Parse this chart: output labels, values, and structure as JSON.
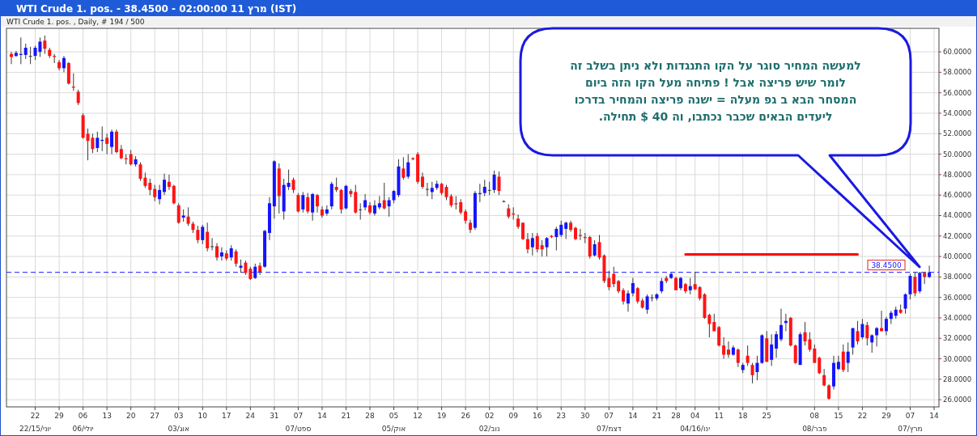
{
  "chart_data": {
    "type": "candlestick",
    "title": "WTI Crude 1. pos. - 38.4500 - 02:00:00 11 מרץ (IST)",
    "subtitle": "WTI Crude 1. pos. , Daily, # 194 / 500",
    "categories": [
      null,
      null,
      null,
      null,
      null,
      "22\n22/15/יוני",
      null,
      null,
      null,
      null,
      "29",
      null,
      null,
      null,
      null,
      "06\n06/יולי",
      null,
      null,
      null,
      null,
      "13",
      null,
      null,
      null,
      null,
      "20",
      null,
      null,
      null,
      null,
      "27",
      null,
      null,
      null,
      null,
      "03\n03/אוג",
      null,
      null,
      null,
      null,
      "10",
      null,
      null,
      null,
      null,
      "17",
      null,
      null,
      null,
      null,
      "24",
      null,
      null,
      null,
      null,
      "31",
      null,
      null,
      null,
      null,
      "07\n07/ספט",
      null,
      null,
      null,
      null,
      "14",
      null,
      null,
      null,
      null,
      "21",
      null,
      null,
      null,
      null,
      "28",
      null,
      null,
      null,
      null,
      "05\n05/אוק",
      null,
      null,
      null,
      null,
      "12",
      null,
      null,
      null,
      null,
      "19",
      null,
      null,
      null,
      null,
      "26",
      null,
      null,
      null,
      null,
      "02\n02/נוב",
      null,
      null,
      null,
      null,
      "09",
      null,
      null,
      null,
      null,
      "16",
      null,
      null,
      null,
      null,
      "23",
      null,
      null,
      null,
      null,
      "30",
      null,
      null,
      null,
      null,
      "07\n07/דצמ",
      null,
      null,
      null,
      null,
      "14",
      null,
      null,
      null,
      null,
      "21",
      null,
      null,
      null,
      "28",
      null,
      null,
      null,
      "04\n04/16/ינו",
      null,
      null,
      null,
      null,
      "11",
      null,
      null,
      null,
      null,
      "18",
      null,
      null,
      null,
      null,
      "25",
      null,
      null,
      null,
      null,
      null,
      null,
      null,
      null,
      null,
      "08\n08/פבר",
      null,
      null,
      null,
      null,
      "15",
      null,
      null,
      null,
      null,
      "22",
      null,
      null,
      null,
      null,
      "29",
      null,
      null,
      null,
      null,
      "07\n07/מרץ",
      null,
      null,
      null,
      null,
      "14"
    ],
    "ylim": [
      25.3,
      62.3
    ],
    "yticks": [
      {
        "value": 26,
        "label": "26.0000"
      },
      {
        "value": 28,
        "label": "28.0000"
      },
      {
        "value": 30,
        "label": "30.0000"
      },
      {
        "value": 32,
        "label": "32.0000"
      },
      {
        "value": 34,
        "label": "34.0000"
      },
      {
        "value": 36,
        "label": "36.0000"
      },
      {
        "value": 38,
        "label": "38.0000"
      },
      {
        "value": 40,
        "label": "40.0000"
      },
      {
        "value": 42,
        "label": "42.0000"
      },
      {
        "value": 44,
        "label": "44.0000"
      },
      {
        "value": 46,
        "label": "46.0000"
      },
      {
        "value": 48,
        "label": "48.0000"
      },
      {
        "value": 50,
        "label": "50.0000"
      },
      {
        "value": 52,
        "label": "52.0000"
      },
      {
        "value": 54,
        "label": "54.0000"
      },
      {
        "value": 56,
        "label": "56.0000"
      },
      {
        "value": 58,
        "label": "58.0000"
      },
      {
        "value": 60,
        "label": "60.0000"
      }
    ],
    "grid": true,
    "colors": [
      "#ff1414",
      "#1414ff",
      "#1414ff",
      "#1414ff",
      "#3a3a3a",
      "#1414ff",
      "#1414ff",
      "#ff1414",
      "#ff1414",
      "#ff1414",
      "#ff1414",
      "#1414ff",
      "#ff1414",
      "#ff1414",
      "#ff1414",
      "#ff1414",
      "#ff1414",
      "#ff1414",
      "#1414ff",
      "#1414ff",
      "#ff1414",
      "#1414ff",
      "#ff1414",
      "#ff1414",
      "#ff1414",
      "#ff1414",
      "#1414ff",
      "#ff1414",
      "#ff1414",
      "#ff1414",
      "#ff1414",
      "#1414ff",
      "#1414ff",
      "#ff1414",
      "#ff1414",
      "#ff1414",
      "#1414ff",
      "#ff1414",
      "#ff1414",
      "#ff1414",
      "#1414ff",
      "#ff1414",
      "#3a3a3a",
      "#ff1414",
      "#1414ff",
      "#ff1414",
      "#1414ff",
      "#ff1414",
      "#1414ff",
      "#ff1414",
      "#ff1414",
      "#1414ff",
      "#ff1414",
      "#1414ff",
      "#1414ff",
      "#1414ff",
      "#ff1414",
      "#1414ff",
      "#1414ff",
      "#ff1414",
      "#ff1414",
      "#1414ff",
      "#ff1414",
      "#1414ff",
      "#ff1414",
      "#ff1414",
      "#1414ff",
      "#1414ff",
      "#ff1414",
      "#ff1414",
      "#1414ff",
      "#ff1414",
      "#ff1414",
      "#3a3a3a",
      "#1414ff",
      "#ff1414",
      "#1414ff",
      "#1414ff",
      "#ff1414",
      "#1414ff",
      "#1414ff",
      "#1414ff",
      "#ff1414",
      "#1414ff",
      "#ff1414",
      "#ff1414",
      "#ff1414",
      "#3a3a3a",
      "#1414ff",
      "#1414ff",
      "#ff1414",
      "#ff1414",
      "#ff1414",
      "#ff1414",
      "#ff1414",
      "#ff1414",
      "#ff1414",
      "#1414ff",
      "#1414ff",
      "#1414ff",
      "#3a3a3a",
      "#1414ff",
      "#ff1414",
      "#3a3a3a",
      "#ff1414",
      "#ff1414",
      "#ff1414",
      "#ff1414",
      "#ff1414",
      "#1414ff",
      "#ff1414",
      "#ff1414",
      "#1414ff",
      "#ff1414",
      "#1414ff",
      "#1414ff",
      "#1414ff",
      "#ff1414",
      "#ff1414",
      "#ff1414",
      "#ff1414",
      "#ff1414",
      "#1414ff",
      "#ff1414",
      "#ff1414",
      "#ff1414",
      "#ff1414",
      "#ff1414",
      "#ff1414",
      "#1414ff",
      "#1414ff",
      "#ff1414",
      "#ff1414",
      "#1414ff",
      "#3a3a3a",
      "#1414ff",
      "#1414ff",
      "#ff1414",
      "#1414ff",
      "#ff1414",
      "#1414ff",
      "#ff1414",
      "#1414ff",
      "#ff1414",
      "#ff1414",
      "#ff1414",
      "#ff1414",
      "#ff1414",
      "#ff1414",
      "#ff1414",
      "#ff1414",
      "#1414ff",
      "#ff1414",
      "#1414ff",
      "#ff1414",
      "#ff1414",
      "#1414ff",
      "#1414ff",
      "#ff1414",
      "#1414ff",
      "#1414ff",
      "#1414ff",
      "#1414ff",
      "#ff1414",
      "#ff1414",
      "#1414ff",
      "#ff1414",
      "#ff1414",
      "#ff1414",
      "#ff1414",
      "#ff1414",
      "#ff1414",
      "#1414ff",
      "#1414ff",
      "#ff1414",
      "#1414ff",
      "#1414ff",
      "#ff1414",
      "#1414ff",
      "#ff1414",
      "#1414ff",
      "#1414ff",
      "#ff1414",
      "#1414ff",
      "#1414ff",
      "#1414ff",
      "#ff1414",
      "#1414ff",
      "#1414ff",
      "#ff1414",
      "#1414ff",
      "#ff1414",
      "#1414ff",
      null
    ],
    "ohlc": [
      [
        59.8,
        60.0,
        58.8,
        59.5
      ],
      [
        59.6,
        60.1,
        59.5,
        59.9
      ],
      [
        59.7,
        61.4,
        58.8,
        59.8
      ],
      [
        59.7,
        60.8,
        59.3,
        60.4
      ],
      [
        59.6,
        60.5,
        58.8,
        59.6
      ],
      [
        59.6,
        60.6,
        59.2,
        60.4
      ],
      [
        60.0,
        61.4,
        59.5,
        61.0
      ],
      [
        61.1,
        61.6,
        59.8,
        60.3
      ],
      [
        60.2,
        60.4,
        59.4,
        59.6
      ],
      [
        59.6,
        59.8,
        58.9,
        59.5
      ],
      [
        59.0,
        59.2,
        58.2,
        58.4
      ],
      [
        58.4,
        59.6,
        58.0,
        59.4
      ],
      [
        58.9,
        59.0,
        56.8,
        56.9
      ],
      [
        56.6,
        57.9,
        56.2,
        56.5
      ],
      [
        56.1,
        56.3,
        54.8,
        55.0
      ],
      [
        53.8,
        54.0,
        51.5,
        51.6
      ],
      [
        52.0,
        52.5,
        49.4,
        51.3
      ],
      [
        51.6,
        52.0,
        50.1,
        50.5
      ],
      [
        50.6,
        52.2,
        50.2,
        51.6
      ],
      [
        51.3,
        52.7,
        50.3,
        51.4
      ],
      [
        51.6,
        52.0,
        50.0,
        51.0
      ],
      [
        50.7,
        52.4,
        50.0,
        52.2
      ],
      [
        52.2,
        52.4,
        50.1,
        50.2
      ],
      [
        50.5,
        50.9,
        49.5,
        49.6
      ],
      [
        49.6,
        50.0,
        49.0,
        49.5
      ],
      [
        50.0,
        50.4,
        48.9,
        49.0
      ],
      [
        49.0,
        49.8,
        48.8,
        49.5
      ],
      [
        49.0,
        49.2,
        47.4,
        47.6
      ],
      [
        47.7,
        48.2,
        46.7,
        46.9
      ],
      [
        47.2,
        47.6,
        46.0,
        46.5
      ],
      [
        46.6,
        47.0,
        45.4,
        45.8
      ],
      [
        45.6,
        47.0,
        45.1,
        46.5
      ],
      [
        46.3,
        48.1,
        46.0,
        47.5
      ],
      [
        47.3,
        48.0,
        46.5,
        46.8
      ],
      [
        46.9,
        47.0,
        45.1,
        45.2
      ],
      [
        45.0,
        45.2,
        43.2,
        43.3
      ],
      [
        43.8,
        44.6,
        43.4,
        44.0
      ],
      [
        43.9,
        44.8,
        43.0,
        43.2
      ],
      [
        43.2,
        43.4,
        42.3,
        42.6
      ],
      [
        42.6,
        43.0,
        41.3,
        41.6
      ],
      [
        41.6,
        43.1,
        41.2,
        42.9
      ],
      [
        42.4,
        43.3,
        40.5,
        40.8
      ],
      [
        41.0,
        41.8,
        40.6,
        41.0
      ],
      [
        41.0,
        41.3,
        39.6,
        39.9
      ],
      [
        40.0,
        40.9,
        39.6,
        40.4
      ],
      [
        40.3,
        40.6,
        39.6,
        39.8
      ],
      [
        39.9,
        41.1,
        39.6,
        40.8
      ],
      [
        40.5,
        40.7,
        39.0,
        39.3
      ],
      [
        38.9,
        39.7,
        38.4,
        39.1
      ],
      [
        39.4,
        39.6,
        38.2,
        38.4
      ],
      [
        38.8,
        39.0,
        37.7,
        37.8
      ],
      [
        37.9,
        39.3,
        37.8,
        39.0
      ],
      [
        39.1,
        39.4,
        38.2,
        38.5
      ],
      [
        39.0,
        42.6,
        38.9,
        42.5
      ],
      [
        42.3,
        45.8,
        41.6,
        45.2
      ],
      [
        44.9,
        49.4,
        43.7,
        49.3
      ],
      [
        48.6,
        49.1,
        44.2,
        45.9
      ],
      [
        44.4,
        47.6,
        43.6,
        47.0
      ],
      [
        46.8,
        48.5,
        46.5,
        47.2
      ],
      [
        47.5,
        47.7,
        46.2,
        46.5
      ],
      [
        46.0,
        46.2,
        44.3,
        44.4
      ],
      [
        44.6,
        46.3,
        44.3,
        46.0
      ],
      [
        45.8,
        46.2,
        44.2,
        44.4
      ],
      [
        44.3,
        46.2,
        43.5,
        46.1
      ],
      [
        46.0,
        46.1,
        44.3,
        44.9
      ],
      [
        44.6,
        44.9,
        43.8,
        44.0
      ],
      [
        44.2,
        45.0,
        44.0,
        44.6
      ],
      [
        44.9,
        47.3,
        44.6,
        47.1
      ],
      [
        46.8,
        47.7,
        46.3,
        46.5
      ],
      [
        46.5,
        46.6,
        44.2,
        44.6
      ],
      [
        44.7,
        47.0,
        44.6,
        46.9
      ],
      [
        46.4,
        46.6,
        45.8,
        46.1
      ],
      [
        46.3,
        47.0,
        44.2,
        44.3
      ],
      [
        44.6,
        45.2,
        43.6,
        44.6
      ],
      [
        44.8,
        46.1,
        44.5,
        45.5
      ],
      [
        45.0,
        45.3,
        44.1,
        44.3
      ],
      [
        44.2,
        45.5,
        44.0,
        45.0
      ],
      [
        44.8,
        45.9,
        44.6,
        45.2
      ],
      [
        45.5,
        47.2,
        44.6,
        44.7
      ],
      [
        44.9,
        45.8,
        43.9,
        45.5
      ],
      [
        45.5,
        46.5,
        45.2,
        46.4
      ],
      [
        46.0,
        49.5,
        45.8,
        48.8
      ],
      [
        48.6,
        49.7,
        47.5,
        47.7
      ],
      [
        47.8,
        50.0,
        47.6,
        49.2
      ],
      [
        49.6,
        49.7,
        49.4,
        49.5
      ],
      [
        50.0,
        50.2,
        47.1,
        47.3
      ],
      [
        47.8,
        48.2,
        46.6,
        46.8
      ],
      [
        46.6,
        47.2,
        45.9,
        46.6
      ],
      [
        46.3,
        47.3,
        45.6,
        46.7
      ],
      [
        46.7,
        47.4,
        46.5,
        47.1
      ],
      [
        47.1,
        47.2,
        46.0,
        46.2
      ],
      [
        46.8,
        47.0,
        45.5,
        45.8
      ],
      [
        45.9,
        46.1,
        44.8,
        45.0
      ],
      [
        45.2,
        45.9,
        44.6,
        45.1
      ],
      [
        45.3,
        45.6,
        44.1,
        44.3
      ],
      [
        44.4,
        44.6,
        43.2,
        43.5
      ],
      [
        43.3,
        43.6,
        42.3,
        42.6
      ],
      [
        42.8,
        46.4,
        42.6,
        46.2
      ],
      [
        46.1,
        47.1,
        45.3,
        46.2
      ],
      [
        46.2,
        47.5,
        45.9,
        46.8
      ],
      [
        46.5,
        47.3,
        46.0,
        46.5
      ],
      [
        46.5,
        48.4,
        46.2,
        48.0
      ],
      [
        47.8,
        48.3,
        46.0,
        46.4
      ],
      [
        45.4,
        45.5,
        45.3,
        45.4
      ],
      [
        44.7,
        45.1,
        43.7,
        43.9
      ],
      [
        44.2,
        44.8,
        43.6,
        44.1
      ],
      [
        43.7,
        44.1,
        42.7,
        42.9
      ],
      [
        43.3,
        43.3,
        41.6,
        41.7
      ],
      [
        41.7,
        42.3,
        40.3,
        40.7
      ],
      [
        40.9,
        42.3,
        40.1,
        41.8
      ],
      [
        42.0,
        42.3,
        40.4,
        40.7
      ],
      [
        41.1,
        41.6,
        40.0,
        40.7
      ],
      [
        40.9,
        41.9,
        40.0,
        41.8
      ],
      [
        42.0,
        42.1,
        41.8,
        41.9
      ],
      [
        41.9,
        42.9,
        40.6,
        42.7
      ],
      [
        42.1,
        43.5,
        41.9,
        43.1
      ],
      [
        42.7,
        43.4,
        41.7,
        43.3
      ],
      [
        43.3,
        43.5,
        42.4,
        42.6
      ],
      [
        42.8,
        42.9,
        41.6,
        41.7
      ],
      [
        42.1,
        42.7,
        41.6,
        42.0
      ],
      [
        41.9,
        42.3,
        41.3,
        41.8
      ],
      [
        41.9,
        42.0,
        39.8,
        40.0
      ],
      [
        40.1,
        41.6,
        40.0,
        41.2
      ],
      [
        41.4,
        42.1,
        39.7,
        39.9
      ],
      [
        40.1,
        40.2,
        37.4,
        37.6
      ],
      [
        37.9,
        38.6,
        36.7,
        37.0
      ],
      [
        38.3,
        39.0,
        37.0,
        37.3
      ],
      [
        37.6,
        37.7,
        36.4,
        36.6
      ],
      [
        36.7,
        36.9,
        35.3,
        35.6
      ],
      [
        35.4,
        36.7,
        34.6,
        36.4
      ],
      [
        36.4,
        37.9,
        36.1,
        37.4
      ],
      [
        36.9,
        37.0,
        35.4,
        35.6
      ],
      [
        35.7,
        35.9,
        34.9,
        35.0
      ],
      [
        34.8,
        36.3,
        34.4,
        36.1
      ],
      [
        36.0,
        36.3,
        35.6,
        36.0
      ],
      [
        35.9,
        36.4,
        35.7,
        36.3
      ],
      [
        36.6,
        37.9,
        36.4,
        37.6
      ],
      [
        37.9,
        38.1,
        37.4,
        37.6
      ],
      [
        37.9,
        38.4,
        37.8,
        38.3
      ],
      [
        37.9,
        38.0,
        36.7,
        36.7
      ],
      [
        36.9,
        38.0,
        36.7,
        37.9
      ],
      [
        37.3,
        37.4,
        36.4,
        36.6
      ],
      [
        36.7,
        37.9,
        36.3,
        37.1
      ],
      [
        37.3,
        38.5,
        36.7,
        36.8
      ],
      [
        37.0,
        37.1,
        35.7,
        35.9
      ],
      [
        36.3,
        36.4,
        33.9,
        34.0
      ],
      [
        34.3,
        34.4,
        32.1,
        33.4
      ],
      [
        33.6,
        34.4,
        32.7,
        32.7
      ],
      [
        33.1,
        33.2,
        31.2,
        31.3
      ],
      [
        31.3,
        32.1,
        30.0,
        30.4
      ],
      [
        30.9,
        31.7,
        30.1,
        30.4
      ],
      [
        30.4,
        31.3,
        30.3,
        31.1
      ],
      [
        30.9,
        31.0,
        29.2,
        29.6
      ],
      [
        28.9,
        29.6,
        28.6,
        29.4
      ],
      [
        30.3,
        31.3,
        29.3,
        29.6
      ],
      [
        29.4,
        29.6,
        27.6,
        28.4
      ],
      [
        28.7,
        30.3,
        27.9,
        29.6
      ],
      [
        29.6,
        32.4,
        29.5,
        32.3
      ],
      [
        32.0,
        32.7,
        29.7,
        29.7
      ],
      [
        29.9,
        32.4,
        29.3,
        31.4
      ],
      [
        31.0,
        32.7,
        30.1,
        32.4
      ],
      [
        31.9,
        34.9,
        31.7,
        33.3
      ],
      [
        33.5,
        34.4,
        32.7,
        33.7
      ],
      [
        34.0,
        34.1,
        31.2,
        31.3
      ],
      [
        31.3,
        31.4,
        29.5,
        29.6
      ],
      [
        29.4,
        32.6,
        29.4,
        32.4
      ],
      [
        32.6,
        33.6,
        31.3,
        31.7
      ],
      [
        31.9,
        32.6,
        30.7,
        30.9
      ],
      [
        31.0,
        31.4,
        29.6,
        29.6
      ],
      [
        30.1,
        30.2,
        28.5,
        28.6
      ],
      [
        28.4,
        29.0,
        27.3,
        27.4
      ],
      [
        27.4,
        27.5,
        26.0,
        26.1
      ],
      [
        27.3,
        30.3,
        27.0,
        29.6
      ],
      [
        29.0,
        30.3,
        28.9,
        29.7
      ],
      [
        30.7,
        31.4,
        28.7,
        28.9
      ],
      [
        29.6,
        31.6,
        28.7,
        30.7
      ],
      [
        31.1,
        33.0,
        30.4,
        33.0
      ],
      [
        32.7,
        33.7,
        31.4,
        31.7
      ],
      [
        32.1,
        33.9,
        31.9,
        33.4
      ],
      [
        33.3,
        33.6,
        31.3,
        32.0
      ],
      [
        31.6,
        32.4,
        30.6,
        32.3
      ],
      [
        32.3,
        33.1,
        31.2,
        33.0
      ],
      [
        33.0,
        34.7,
        32.7,
        32.7
      ],
      [
        32.7,
        34.1,
        32.3,
        33.9
      ],
      [
        33.9,
        34.7,
        33.4,
        34.5
      ],
      [
        34.2,
        35.1,
        33.9,
        34.8
      ],
      [
        34.8,
        35.3,
        34.4,
        34.5
      ],
      [
        34.9,
        36.4,
        34.4,
        36.3
      ],
      [
        36.3,
        38.3,
        35.8,
        38.1
      ],
      [
        38.0,
        38.5,
        36.1,
        36.4
      ],
      [
        36.6,
        38.5,
        36.4,
        38.4
      ],
      [
        38.4,
        38.5,
        37.3,
        38.0
      ],
      [
        38.0,
        39.1,
        37.9,
        38.45
      ],
      null
    ],
    "series": [
      {
        "type": "line",
        "color": "#ff0000",
        "values": [
          null,
          null,
          null,
          null,
          null,
          null,
          null,
          null,
          null,
          null,
          null,
          null,
          null,
          null,
          null,
          null,
          null,
          null,
          null,
          null,
          null,
          null,
          null,
          null,
          null,
          null,
          null,
          null,
          null,
          null,
          null,
          null,
          null,
          null,
          null,
          null,
          null,
          null,
          null,
          null,
          null,
          null,
          null,
          null,
          null,
          null,
          null,
          null,
          null,
          null,
          null,
          null,
          null,
          null,
          null,
          null,
          null,
          null,
          null,
          null,
          null,
          null,
          null,
          null,
          null,
          null,
          null,
          null,
          null,
          null,
          null,
          null,
          null,
          null,
          null,
          null,
          null,
          null,
          null,
          null,
          null,
          null,
          null,
          null,
          null,
          null,
          null,
          null,
          null,
          null,
          null,
          null,
          null,
          null,
          null,
          null,
          null,
          null,
          null,
          null,
          null,
          null,
          null,
          null,
          null,
          null,
          null,
          null,
          null,
          null,
          null,
          null,
          null,
          null,
          null,
          null,
          null,
          null,
          null,
          null,
          null,
          null,
          null,
          null,
          null,
          null,
          null,
          null,
          null,
          null,
          null,
          null,
          null,
          null,
          null,
          null,
          null,
          null,
          null,
          null,
          null,
          40.2,
          40.2,
          40.2,
          40.2,
          40.2,
          40.2,
          40.2,
          40.2,
          40.2,
          40.2,
          40.2,
          40.2,
          40.2,
          40.2,
          40.2,
          40.2,
          40.2,
          40.2,
          40.2,
          40.2,
          40.2,
          40.2,
          40.2,
          40.2,
          40.2,
          40.2,
          40.2,
          40.2,
          40.2,
          40.2,
          40.2,
          40.2,
          40.2,
          40.2,
          40.2,
          40.2,
          40.2,
          null,
          null,
          null,
          null,
          null,
          null,
          null,
          null,
          null,
          null,
          null,
          null,
          null,
          null,
          null,
          null
        ]
      }
    ],
    "ref_lines": [
      {
        "axis": "y",
        "value": 38.45,
        "label": "38.4500",
        "color": "#1a1aff",
        "line_style": "dashed"
      }
    ],
    "annotations": [
      "למעשה  המחיר  סוגר  על הקו  התנגדות ולא ניתן בשלב זה\nלומר  שיש  פריצה  אבל ! פתיחה  מעל  הקו  הזה  ביום\nהמסחר  הבא  ב גפ  מעלה =  ישנה  פריצה  והמחיר  בדרכו\nליעדים  הבאים שכבר  נכתבו, וה  40  $  תחילה."
    ]
  }
}
